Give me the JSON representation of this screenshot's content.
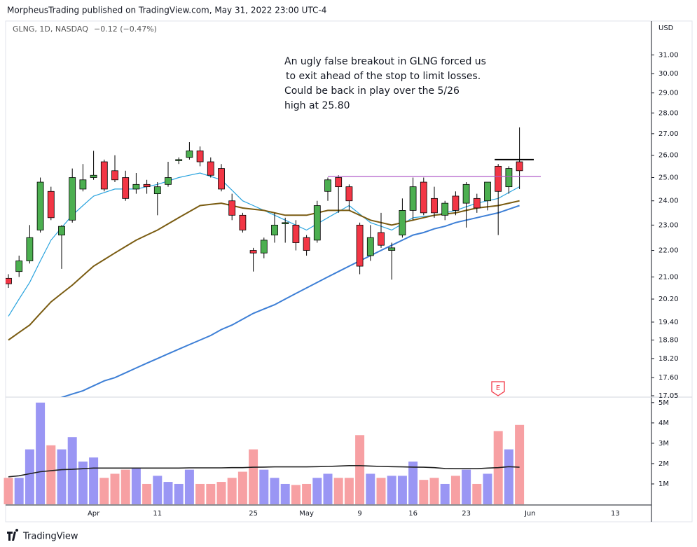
{
  "chart_data": {
    "type": "candlestick",
    "header": "MorpheusTrading published on TradingView.com, May 31, 2022 23:00 UTC-4",
    "symbol": "GLNG, 1D, NASDAQ",
    "change": "−0.12 (−0.47%)",
    "currency": "USD",
    "annotation": [
      "An ugly false breakout in GLNG forced us",
      "to exit ahead of the stop to limit losses.",
      "Could be back in play over the 5/26",
      "high at 25.80"
    ],
    "earnings_marker": "E",
    "footer": "TradingView",
    "log_scale": true,
    "ylim": [
      17.05,
      32.9
    ],
    "yticks": [
      {
        "value": 31,
        "label": "31.00"
      },
      {
        "value": 30,
        "label": "30.00"
      },
      {
        "value": 29,
        "label": "29.00"
      },
      {
        "value": 28,
        "label": "28.00"
      },
      {
        "value": 27,
        "label": "27.00"
      },
      {
        "value": 26,
        "label": "26.00"
      },
      {
        "value": 25,
        "label": "25.00"
      },
      {
        "value": 24,
        "label": "24.00"
      },
      {
        "value": 23,
        "label": "23.00"
      },
      {
        "value": 22,
        "label": "22.00"
      },
      {
        "value": 21,
        "label": "21.00"
      },
      {
        "value": 20.2,
        "label": "20.20"
      },
      {
        "value": 19.4,
        "label": "19.40"
      },
      {
        "value": 18.8,
        "label": "18.80"
      },
      {
        "value": 18.2,
        "label": "18.20"
      },
      {
        "value": 17.6,
        "label": "17.60"
      },
      {
        "value": 17.05,
        "label": "17.05"
      }
    ],
    "colors": {
      "up": "#4caf50",
      "down": "#f23645",
      "border": "#000000"
    },
    "categories": [
      null,
      null,
      null,
      null,
      null,
      null,
      null,
      null,
      "Apr",
      null,
      null,
      null,
      null,
      null,
      "11",
      null,
      null,
      null,
      null,
      null,
      null,
      null,
      null,
      "25",
      null,
      null,
      null,
      null,
      "May",
      null,
      null,
      null,
      null,
      "9",
      null,
      null,
      null,
      null,
      "16",
      null,
      null,
      null,
      null,
      "23",
      null,
      null,
      null,
      null,
      null,
      "Jun",
      null,
      null,
      null,
      null,
      null,
      null,
      null,
      "13",
      null,
      null,
      null
    ],
    "open": [
      20.95,
      21.2,
      21.6,
      22.8,
      24.4,
      22.6,
      23.2,
      24.5,
      25.0,
      25.7,
      25.3,
      25.0,
      24.5,
      24.7,
      24.3,
      24.7,
      25.75,
      25.9,
      26.2,
      25.7,
      25.4,
      24.0,
      23.4,
      22.0,
      21.9,
      22.6,
      23.05,
      23.0,
      22.5,
      22.4,
      24.4,
      25.0,
      24.6,
      23.0,
      21.8,
      22.7,
      22.0,
      22.6,
      23.6,
      24.8,
      24.1,
      23.4,
      24.2,
      23.9,
      24.1,
      24.0,
      25.5,
      24.6,
      25.7,
      null,
      null,
      null,
      null,
      null,
      null,
      null,
      null,
      null,
      null,
      null,
      null
    ],
    "high": [
      21.1,
      21.8,
      23.0,
      25.0,
      24.6,
      23.0,
      25.4,
      25.6,
      26.2,
      25.8,
      26.0,
      25.3,
      25.2,
      24.9,
      24.8,
      25.7,
      25.9,
      26.6,
      26.4,
      25.9,
      25.6,
      24.3,
      23.5,
      22.1,
      22.5,
      23.5,
      23.3,
      23.2,
      22.6,
      24.0,
      25.0,
      25.1,
      24.7,
      23.1,
      23.0,
      23.5,
      22.3,
      24.1,
      25.0,
      25.0,
      24.6,
      24.0,
      24.4,
      24.8,
      24.3,
      24.8,
      25.6,
      25.5,
      27.3,
      null,
      null,
      null,
      null,
      null,
      null,
      null,
      null,
      null,
      null,
      null,
      null
    ],
    "low": [
      20.6,
      21.0,
      21.5,
      22.7,
      23.2,
      21.3,
      23.1,
      24.4,
      24.9,
      24.4,
      24.8,
      24.0,
      24.3,
      24.3,
      23.4,
      24.6,
      25.6,
      25.8,
      25.5,
      25.0,
      24.4,
      23.2,
      22.7,
      21.2,
      21.7,
      22.3,
      22.3,
      22.0,
      21.8,
      22.3,
      24.0,
      23.5,
      23.6,
      21.1,
      21.6,
      22.1,
      20.9,
      22.5,
      23.2,
      23.4,
      23.3,
      23.2,
      23.4,
      22.9,
      23.5,
      23.6,
      22.6,
      24.3,
      24.5,
      null,
      null,
      null,
      null,
      null,
      null,
      null,
      null,
      null,
      null,
      null,
      null
    ],
    "close": [
      20.75,
      21.6,
      22.5,
      24.8,
      23.3,
      22.95,
      25.0,
      24.9,
      25.1,
      24.5,
      24.9,
      24.1,
      24.7,
      24.6,
      24.6,
      25.0,
      25.8,
      26.2,
      25.7,
      25.1,
      24.5,
      23.4,
      22.8,
      21.9,
      22.4,
      23.0,
      23.1,
      22.3,
      22.0,
      23.8,
      24.9,
      24.6,
      24.0,
      21.4,
      22.5,
      22.2,
      22.1,
      23.6,
      24.6,
      23.5,
      23.5,
      23.9,
      23.6,
      24.7,
      23.7,
      24.8,
      24.4,
      25.4,
      25.3,
      null,
      null,
      null,
      null,
      null,
      null,
      null,
      null,
      null,
      null,
      null,
      null
    ],
    "moving_averages": [
      {
        "color": "#29a3de",
        "values": [
          19.6,
          20.2,
          20.8,
          21.6,
          22.4,
          22.9,
          23.4,
          23.8,
          24.2,
          24.35,
          24.5,
          24.5,
          24.5,
          24.6,
          24.7,
          24.85,
          25.0,
          25.1,
          25.2,
          25.05,
          24.9,
          24.45,
          24.0,
          23.8,
          23.6,
          23.4,
          23.2,
          23.0,
          22.8,
          23.05,
          23.3,
          23.55,
          23.8,
          23.45,
          23.1,
          22.95,
          22.8,
          23.05,
          23.3,
          23.35,
          23.4,
          23.5,
          23.6,
          23.75,
          23.9,
          24.0,
          24.1,
          24.35,
          24.6,
          null,
          null,
          null,
          null,
          null,
          null,
          null,
          null,
          null,
          null,
          null,
          null
        ]
      },
      {
        "color": "#7a5c12",
        "values": [
          18.8,
          19.05,
          19.3,
          19.7,
          20.1,
          20.4,
          20.7,
          21.05,
          21.4,
          21.65,
          21.9,
          22.15,
          22.4,
          22.6,
          22.8,
          23.05,
          23.3,
          23.55,
          23.8,
          23.85,
          23.9,
          23.8,
          23.7,
          23.65,
          23.6,
          23.5,
          23.4,
          23.4,
          23.4,
          23.5,
          23.6,
          23.6,
          23.6,
          23.4,
          23.2,
          23.1,
          23.0,
          23.1,
          23.2,
          23.3,
          23.4,
          23.45,
          23.5,
          23.6,
          23.7,
          23.75,
          23.8,
          23.9,
          24.0,
          null,
          null,
          null,
          null,
          null,
          null,
          null,
          null,
          null,
          null,
          null,
          null
        ]
      },
      {
        "color": "#3d7fd6",
        "values": [
          16.4,
          16.5,
          16.6,
          16.75,
          16.85,
          17.0,
          17.1,
          17.2,
          17.35,
          17.5,
          17.6,
          17.75,
          17.9,
          18.05,
          18.2,
          18.35,
          18.5,
          18.65,
          18.8,
          18.95,
          19.15,
          19.3,
          19.5,
          19.7,
          19.85,
          20.0,
          20.2,
          20.4,
          20.6,
          20.8,
          21.0,
          21.2,
          21.4,
          21.6,
          21.8,
          22.0,
          22.2,
          22.4,
          22.6,
          22.7,
          22.85,
          22.95,
          23.1,
          23.2,
          23.3,
          23.4,
          23.5,
          23.65,
          23.8,
          null,
          null,
          null,
          null,
          null,
          null,
          null,
          null,
          null,
          null,
          null,
          null
        ]
      }
    ],
    "levels": [
      {
        "value": 25.05,
        "color": "#b05cc8"
      },
      {
        "value": 25.8,
        "color": "#000000"
      }
    ],
    "volume": {
      "ylim": [
        0,
        5200000
      ],
      "yticks": [
        {
          "value": 5000000,
          "label": "5M"
        },
        {
          "value": 4000000,
          "label": "4M"
        },
        {
          "value": 3000000,
          "label": "3M"
        },
        {
          "value": 2000000,
          "label": "2M"
        },
        {
          "value": 1000000,
          "label": "1M"
        }
      ],
      "colors": {
        "up": "#9a96f4",
        "down": "#f7a0a3"
      },
      "values": [
        1300000,
        1300000,
        2700000,
        5000000,
        2900000,
        2700000,
        3300000,
        2100000,
        2300000,
        1300000,
        1500000,
        1700000,
        1800000,
        1000000,
        1400000,
        1100000,
        1000000,
        1700000,
        1000000,
        1000000,
        1100000,
        1300000,
        1600000,
        2700000,
        1700000,
        1300000,
        1000000,
        950000,
        1000000,
        1300000,
        1500000,
        1300000,
        1300000,
        3400000,
        1500000,
        1300000,
        1400000,
        1400000,
        2100000,
        1200000,
        1300000,
        1000000,
        1400000,
        1700000,
        1000000,
        1500000,
        3600000,
        2700000,
        3900000,
        null,
        null,
        null,
        null,
        null,
        null,
        null,
        null,
        null,
        null,
        null,
        null
      ],
      "average": {
        "color": "#222222",
        "values": [
          1350000,
          1400000,
          1500000,
          1600000,
          1650000,
          1700000,
          1720000,
          1750000,
          1780000,
          1780000,
          1780000,
          1780000,
          1780000,
          1780000,
          1780000,
          1780000,
          1780000,
          1790000,
          1790000,
          1790000,
          1790000,
          1800000,
          1800000,
          1820000,
          1830000,
          1840000,
          1840000,
          1840000,
          1840000,
          1850000,
          1860000,
          1880000,
          1900000,
          1900000,
          1880000,
          1860000,
          1850000,
          1840000,
          1830000,
          1820000,
          1800000,
          1760000,
          1750000,
          1750000,
          1750000,
          1780000,
          1800000,
          1850000,
          1820000,
          null,
          null,
          null,
          null,
          null,
          null,
          null,
          null,
          null,
          null,
          null,
          null
        ]
      }
    }
  }
}
